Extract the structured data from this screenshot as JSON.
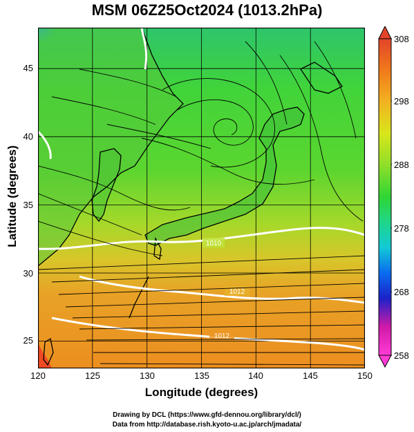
{
  "title": "MSM 06Z25Oct2024 (1013.2hPa)",
  "axes": {
    "xlabel": "Longitude (degrees)",
    "ylabel": "Latitude  (degrees)",
    "xticks": [
      "120",
      "125",
      "130",
      "135",
      "140",
      "145",
      "150"
    ],
    "yticks": [
      "25",
      "30",
      "35",
      "40",
      "45"
    ],
    "xrange": [
      120,
      150
    ],
    "yrange": [
      23,
      48
    ]
  },
  "colorbar": {
    "ticks": [
      "308",
      "298",
      "288",
      "278",
      "268",
      "258"
    ],
    "range": [
      258,
      308
    ],
    "colors": [
      "#ff3bd6",
      "#d01aa8",
      "#1a22c8",
      "#0a6cf0",
      "#12c9d6",
      "#1fd68a",
      "#2fd634",
      "#8fde2a",
      "#d8e61a",
      "#f2b322",
      "#f07a1a",
      "#e2442a"
    ]
  },
  "contour_labels": [
    "1010",
    "1012",
    "1012"
  ],
  "credits": {
    "line1": "Drawing by DCL (https://www.gfd-dennou.org/library/dcl/)",
    "line2": "Data from http://database.rish.kyoto-u.ac.jp/arch/jmadata/"
  }
}
